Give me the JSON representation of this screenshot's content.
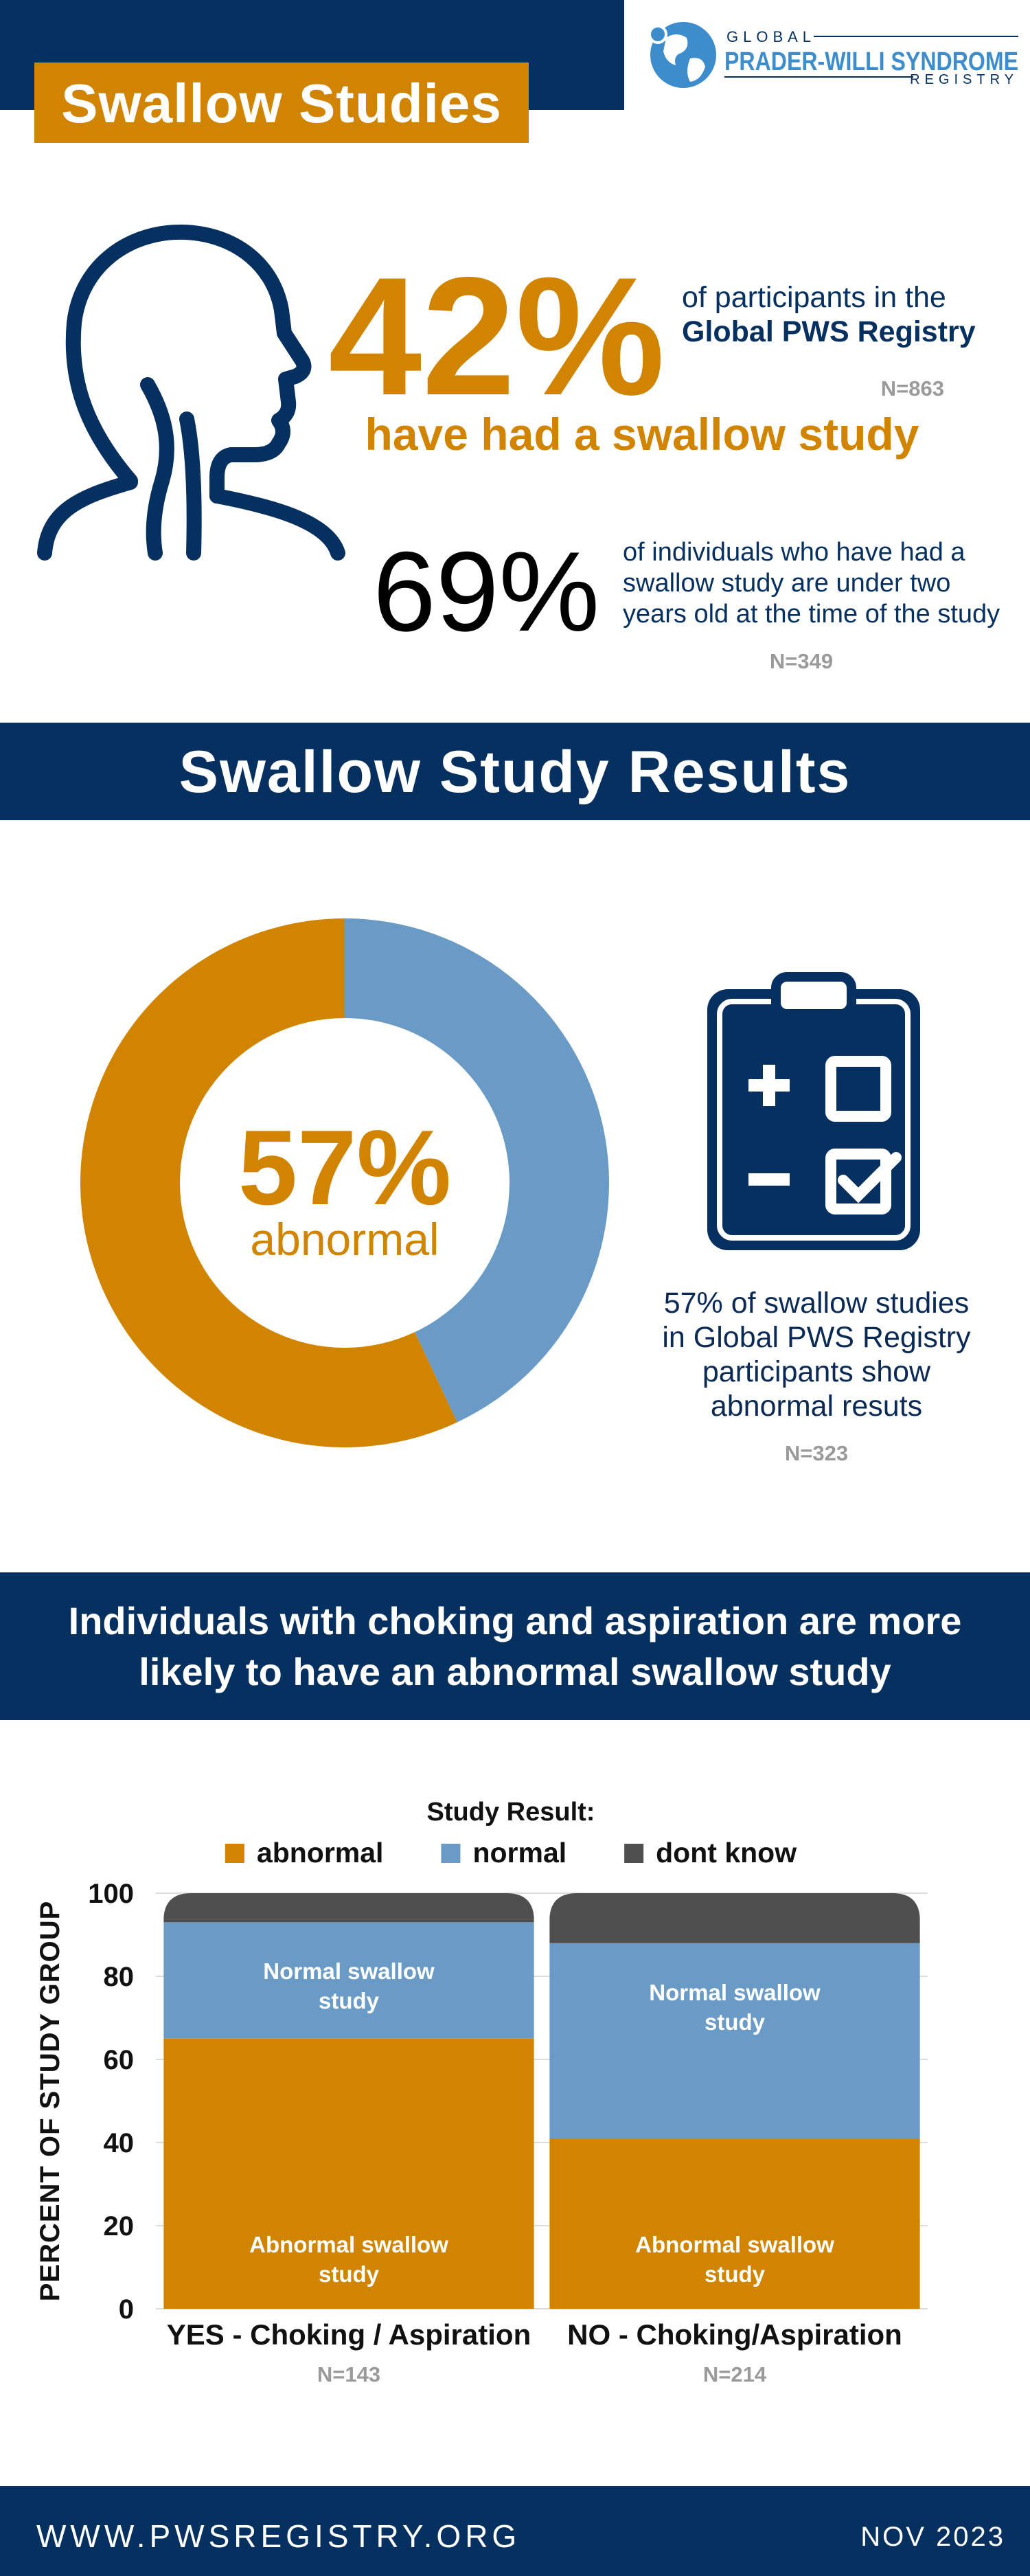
{
  "header": {
    "title": "Swallow Studies",
    "logo": {
      "line1": "GLOBAL",
      "line2": "PRADER-WILLI SYNDROME",
      "line3": "REGISTRY"
    }
  },
  "stats": [
    {
      "value": "42%",
      "text": "of participants in the",
      "emphasis": "Global PWS Registry",
      "n": "N=863",
      "caption": "have had a swallow study"
    },
    {
      "value": "69%",
      "text": "of individuals who have had a swallow study are under two years old at the time of the study",
      "n": "N=349"
    }
  ],
  "sections": [
    {
      "title": "Swallow Study Results"
    },
    {
      "title": "Individuals with choking and aspiration are more likely to have an abnormal swallow study"
    }
  ],
  "chart_data": [
    {
      "type": "donut",
      "categories": [
        "abnormal",
        null
      ],
      "values": [
        57,
        43
      ],
      "value_labels": [
        "57%",
        null
      ],
      "colors": [
        "#d08400",
        "#6a9bc6"
      ],
      "description": "57% of swallow studies in Global PWS Registry participants show abnormal resuts",
      "n": "N=323"
    },
    {
      "type": "stacked_bar",
      "legend_title": "Study Result:",
      "legend": "top",
      "categories": [
        "YES - Choking / Aspiration",
        "NO - Choking/Aspiration"
      ],
      "category_notes": [
        "N=143",
        "N=214"
      ],
      "ylabel": "PERCENT OF STUDY GROUP",
      "ylim": [
        0,
        100
      ],
      "yticks": [
        0,
        20,
        40,
        60,
        80,
        100
      ],
      "grid": true,
      "series": [
        {
          "name": "abnormal",
          "color": "#d08400",
          "values": [
            65,
            41
          ],
          "labels": [
            "Abnormal swallow study",
            "Abnormal swallow study"
          ]
        },
        {
          "name": "normal",
          "color": "#6a9bc6",
          "values": [
            28,
            47
          ],
          "labels": [
            "Normal swallow study",
            "Normal swallow study"
          ]
        },
        {
          "name": "dont know",
          "color": "#4f4f4f",
          "values": [
            7,
            12
          ]
        }
      ]
    }
  ],
  "footer": {
    "url": "WWW.PWSREGISTRY.ORG",
    "date": "NOV 2023"
  }
}
